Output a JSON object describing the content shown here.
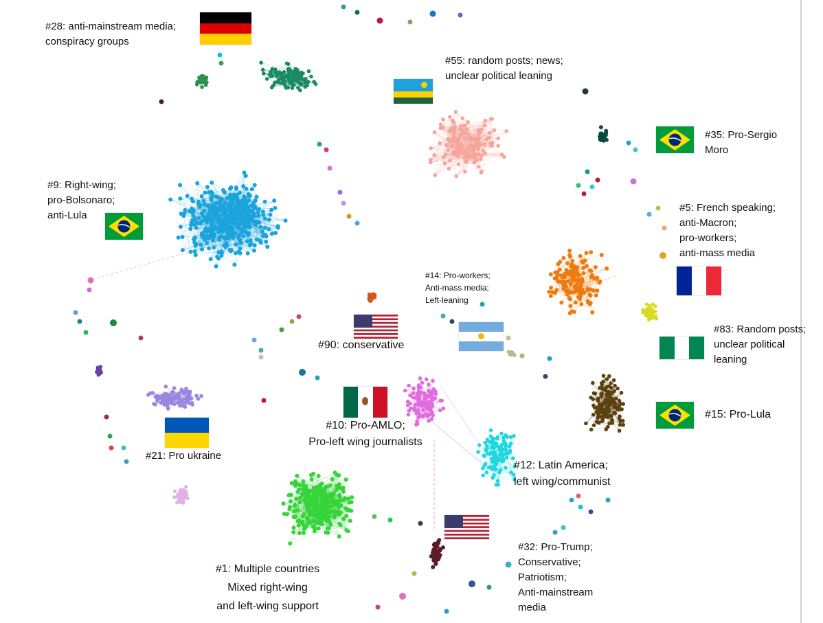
{
  "colors": {
    "germany_green": "#1b8a63",
    "rwanda_salmon": "#f6a59b",
    "brazil_left_blue": "#1aa3dc",
    "france_orange": "#ee7b0f",
    "latam_cyan": "#1fd7e0",
    "mexico_magenta": "#e16bdf",
    "pro_lula_brown": "#5c4110",
    "multi_green": "#36d43a",
    "ukraine_purple": "#9a86de",
    "trump_maroon": "#5a1c2b",
    "moro_dark": "#0d4a3e",
    "conservative_orange": "#d9531b",
    "yellow_green": "#d8da1f"
  },
  "clusters": [
    {
      "id": "28",
      "lines": [
        "#28: anti-mainstream media;",
        "conspiracy groups"
      ],
      "flag": "germany-flag"
    },
    {
      "id": "55",
      "lines": [
        "#55: random posts; news;",
        "unclear political leaning"
      ],
      "flag": "rwanda-flag"
    },
    {
      "id": "35",
      "lines": [
        "#35: Pro-Sergio",
        "Moro"
      ],
      "flag": "brazil-flag"
    },
    {
      "id": "9",
      "lines": [
        "#9: Right-wing;",
        "pro-Bolsonaro;",
        "anti-Lula"
      ],
      "flag": "brazil-flag"
    },
    {
      "id": "5",
      "lines": [
        "#5: French speaking;",
        "anti-Macron;",
        "pro-workers;",
        "anti-mass media"
      ],
      "flag": "france-flag"
    },
    {
      "id": "14",
      "lines": [
        "#14: Pro-workers;",
        "Anti-mass media;",
        "Left-leaning"
      ],
      "flag": "argentina-flag"
    },
    {
      "id": "90",
      "lines": [
        "#90: conservative"
      ],
      "flag": "usa-flag"
    },
    {
      "id": "83",
      "lines": [
        "#83: Random posts;",
        "unclear political",
        "leaning"
      ],
      "flag": "nigeria-flag"
    },
    {
      "id": "10",
      "lines": [
        "#10: Pro-AMLO;",
        "Pro-left wing journalists"
      ],
      "flag": "mexico-flag"
    },
    {
      "id": "15",
      "lines": [
        "#15: Pro-Lula"
      ],
      "flag": "brazil-flag"
    },
    {
      "id": "21",
      "lines": [
        "#21: Pro ukraine"
      ],
      "flag": "ukraine-flag"
    },
    {
      "id": "12",
      "lines": [
        "#12: Latin America;",
        "left wing/communist"
      ],
      "flag": ""
    },
    {
      "id": "1",
      "lines": [
        "#1: Multiple countries",
        "Mixed right-wing",
        "and left-wing support"
      ],
      "flag": ""
    },
    {
      "id": "32",
      "lines": [
        "#32:  Pro-Trump;",
        "Conservative;",
        "Patriotism;",
        "Anti-mainstream",
        "media"
      ],
      "flag": "usa-flag"
    }
  ]
}
